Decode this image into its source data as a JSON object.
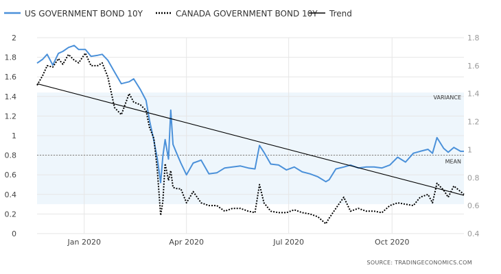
{
  "legend": {
    "us_label": "US GOVERNMENT BOND 10Y",
    "canada_label": "CANADA GOVERNMENT BOND 10Y",
    "trend_label": "Trend"
  },
  "annotations": {
    "variance": "VARIANCE",
    "mean": "MEAN"
  },
  "source": "SOURCE:  TRADINGECONOMICS.COM",
  "colors": {
    "us": "#4a90d9",
    "canada": "#000000",
    "trend": "#000000",
    "band": "#eef6fc",
    "mean_line": "#555555"
  },
  "chart_data": {
    "type": "line",
    "x_ticks": [
      "Jan 2020",
      "Apr 2020",
      "Jul 2020",
      "Oct 2020"
    ],
    "y_left": {
      "ticks": [
        "0",
        "0.2",
        "0.4",
        "0.6",
        "0.8",
        "1",
        "1.2",
        "1.4",
        "1.6",
        "1.8",
        "2"
      ],
      "range": [
        0,
        2
      ]
    },
    "y_right": {
      "ticks": [
        "0.4",
        "0.6",
        "0.8",
        "1",
        "1.2",
        "1.4",
        "1.6",
        "1.8"
      ],
      "range": [
        0.4,
        1.8
      ]
    },
    "x_range": [
      "2019-11-20",
      "2020-12-04"
    ],
    "variance_band": [
      0.3,
      1.44
    ],
    "mean": 0.8,
    "series": [
      {
        "name": "US GOVERNMENT BOND 10Y",
        "axis": "left",
        "style": "solid",
        "x": [
          "2019-11-20",
          "2019-11-25",
          "2019-11-29",
          "2019-12-04",
          "2019-12-09",
          "2019-12-13",
          "2019-12-18",
          "2019-12-23",
          "2019-12-27",
          "2020-01-02",
          "2020-01-07",
          "2020-01-13",
          "2020-01-17",
          "2020-01-22",
          "2020-01-28",
          "2020-02-03",
          "2020-02-10",
          "2020-02-14",
          "2020-02-20",
          "2020-02-25",
          "2020-02-28",
          "2020-03-03",
          "2020-03-06",
          "2020-03-09",
          "2020-03-11",
          "2020-03-13",
          "2020-03-16",
          "2020-03-18",
          "2020-03-20",
          "2020-03-24",
          "2020-03-27",
          "2020-04-01",
          "2020-04-07",
          "2020-04-14",
          "2020-04-21",
          "2020-04-28",
          "2020-05-05",
          "2020-05-12",
          "2020-05-19",
          "2020-05-26",
          "2020-06-01",
          "2020-06-05",
          "2020-06-09",
          "2020-06-15",
          "2020-06-22",
          "2020-06-29",
          "2020-07-06",
          "2020-07-13",
          "2020-07-20",
          "2020-07-27",
          "2020-08-03",
          "2020-08-06",
          "2020-08-12",
          "2020-08-19",
          "2020-08-25",
          "2020-09-01",
          "2020-09-08",
          "2020-09-15",
          "2020-09-22",
          "2020-09-29",
          "2020-10-06",
          "2020-10-13",
          "2020-10-20",
          "2020-10-26",
          "2020-11-02",
          "2020-11-06",
          "2020-11-10",
          "2020-11-16",
          "2020-11-20",
          "2020-11-25",
          "2020-12-01",
          "2020-12-04"
        ],
        "values": [
          1.74,
          1.78,
          1.83,
          1.72,
          1.84,
          1.86,
          1.9,
          1.92,
          1.88,
          1.88,
          1.81,
          1.82,
          1.83,
          1.77,
          1.65,
          1.53,
          1.55,
          1.58,
          1.47,
          1.36,
          1.16,
          0.95,
          0.77,
          0.52,
          0.79,
          0.96,
          0.76,
          1.26,
          0.91,
          0.8,
          0.72,
          0.6,
          0.72,
          0.75,
          0.61,
          0.62,
          0.67,
          0.68,
          0.69,
          0.67,
          0.66,
          0.9,
          0.83,
          0.71,
          0.7,
          0.65,
          0.68,
          0.63,
          0.61,
          0.58,
          0.53,
          0.55,
          0.66,
          0.68,
          0.7,
          0.67,
          0.68,
          0.68,
          0.67,
          0.7,
          0.78,
          0.73,
          0.82,
          0.84,
          0.86,
          0.82,
          0.98,
          0.87,
          0.83,
          0.88,
          0.84,
          0.84
        ]
      },
      {
        "name": "CANADA GOVERNMENT BOND 10Y",
        "axis": "right",
        "style": "dotted",
        "x": [
          "2019-11-20",
          "2019-11-25",
          "2019-11-29",
          "2019-12-04",
          "2019-12-09",
          "2019-12-13",
          "2019-12-18",
          "2019-12-23",
          "2019-12-27",
          "2020-01-02",
          "2020-01-07",
          "2020-01-13",
          "2020-01-17",
          "2020-01-22",
          "2020-01-28",
          "2020-02-03",
          "2020-02-10",
          "2020-02-14",
          "2020-02-20",
          "2020-02-25",
          "2020-02-28",
          "2020-03-03",
          "2020-03-06",
          "2020-03-09",
          "2020-03-11",
          "2020-03-13",
          "2020-03-16",
          "2020-03-18",
          "2020-03-20",
          "2020-03-24",
          "2020-03-27",
          "2020-04-01",
          "2020-04-07",
          "2020-04-14",
          "2020-04-21",
          "2020-04-28",
          "2020-05-05",
          "2020-05-12",
          "2020-05-19",
          "2020-05-26",
          "2020-06-01",
          "2020-06-05",
          "2020-06-09",
          "2020-06-15",
          "2020-06-22",
          "2020-06-29",
          "2020-07-06",
          "2020-07-13",
          "2020-07-20",
          "2020-07-27",
          "2020-08-03",
          "2020-08-06",
          "2020-08-12",
          "2020-08-19",
          "2020-08-25",
          "2020-09-01",
          "2020-09-08",
          "2020-09-15",
          "2020-09-22",
          "2020-09-29",
          "2020-10-06",
          "2020-10-13",
          "2020-10-20",
          "2020-10-26",
          "2020-11-02",
          "2020-11-06",
          "2020-11-10",
          "2020-11-16",
          "2020-11-20",
          "2020-11-25",
          "2020-12-01",
          "2020-12-04"
        ],
        "values": [
          1.46,
          1.53,
          1.6,
          1.59,
          1.65,
          1.61,
          1.68,
          1.64,
          1.62,
          1.69,
          1.6,
          1.6,
          1.62,
          1.52,
          1.3,
          1.25,
          1.4,
          1.34,
          1.32,
          1.28,
          1.16,
          1.08,
          0.86,
          0.53,
          0.63,
          0.9,
          0.78,
          0.85,
          0.73,
          0.72,
          0.72,
          0.62,
          0.7,
          0.62,
          0.6,
          0.6,
          0.56,
          0.58,
          0.58,
          0.56,
          0.55,
          0.75,
          0.62,
          0.56,
          0.55,
          0.55,
          0.57,
          0.55,
          0.54,
          0.52,
          0.47,
          0.51,
          0.58,
          0.66,
          0.56,
          0.58,
          0.56,
          0.56,
          0.55,
          0.6,
          0.62,
          0.61,
          0.6,
          0.66,
          0.68,
          0.62,
          0.76,
          0.71,
          0.66,
          0.74,
          0.7,
          0.68
        ]
      },
      {
        "name": "Trend",
        "axis": "left",
        "style": "solid",
        "x": [
          "2019-11-20",
          "2020-12-04"
        ],
        "values": [
          1.53,
          0.39
        ]
      }
    ]
  }
}
